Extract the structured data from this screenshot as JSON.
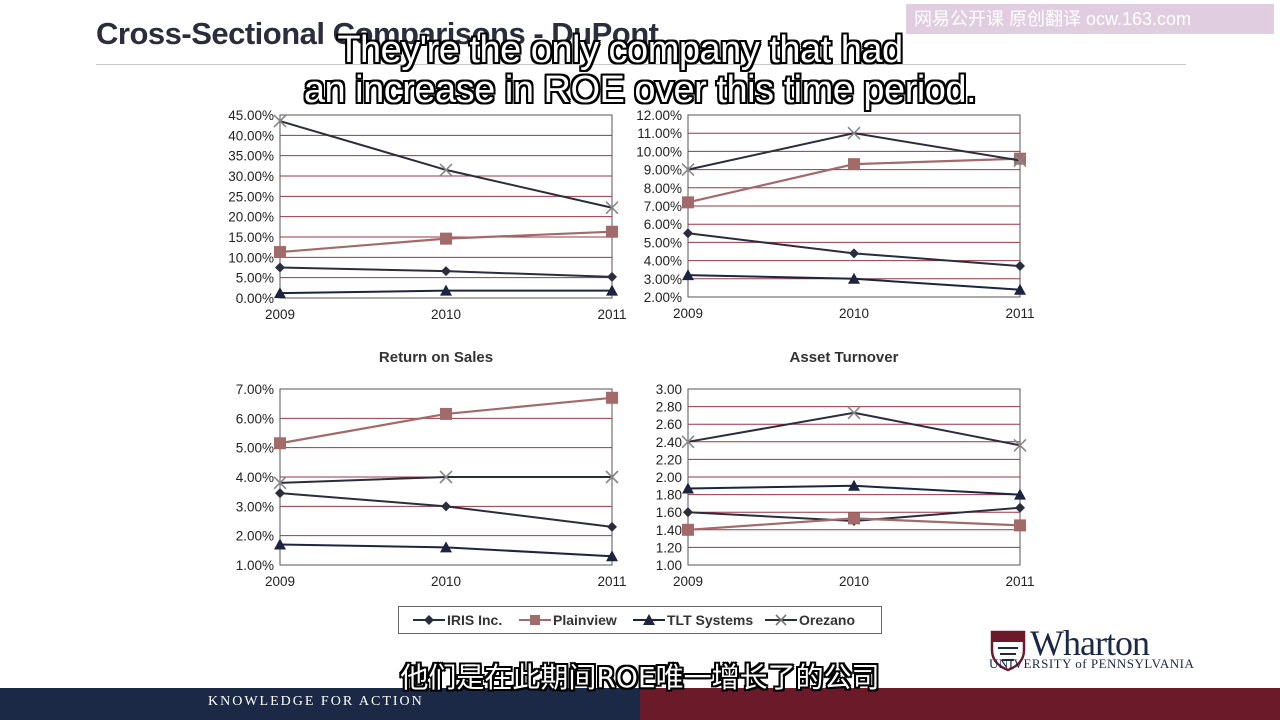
{
  "slide": {
    "title": "Cross-Sectional Comparisons - DuPont",
    "watermark": "网易公开课 原创翻译 ocw.163.com",
    "subtitle_en_line1": "They're the only company that had",
    "subtitle_en_line2": "an increase in ROE over this time period.",
    "subtitle_zh": "他们是在此期间ROE唯一增长了的公司",
    "footer": "KNOWLEDGE FOR ACTION",
    "logo": "Wharton",
    "logo_sub": "UNIVERSITY of PENNSYLVANIA"
  },
  "legend": [
    {
      "name": "IRIS Inc.",
      "color": "#2b2d3c",
      "marker": "diamond"
    },
    {
      "name": "Plainview",
      "color": "#a36a6a",
      "marker": "square"
    },
    {
      "name": "TLT Systems",
      "color": "#1d2440",
      "marker": "triangle"
    },
    {
      "name": "Orezano",
      "color": "#2b2d3c",
      "marker": "x"
    }
  ],
  "chart_data": [
    {
      "type": "line",
      "title": "",
      "x": [
        "2009",
        "2010",
        "2011"
      ],
      "yticks": [
        "0.00%",
        "5.00%",
        "10.00%",
        "15.00%",
        "20.00%",
        "25.00%",
        "30.00%",
        "35.00%",
        "40.00%",
        "45.00%"
      ],
      "ylim": [
        0,
        45
      ],
      "series": [
        {
          "name": "IRIS Inc.",
          "values": [
            7.5,
            6.6,
            5.2
          ]
        },
        {
          "name": "Plainview",
          "values": [
            11.3,
            14.6,
            16.3
          ]
        },
        {
          "name": "TLT Systems",
          "values": [
            1.2,
            1.8,
            1.8
          ]
        },
        {
          "name": "Orezano",
          "values": [
            43.5,
            31.5,
            22.2
          ]
        }
      ]
    },
    {
      "type": "line",
      "title": "",
      "x": [
        "2009",
        "2010",
        "2011"
      ],
      "yticks": [
        "2.00%",
        "3.00%",
        "4.00%",
        "5.00%",
        "6.00%",
        "7.00%",
        "8.00%",
        "9.00%",
        "10.00%",
        "11.00%",
        "12.00%"
      ],
      "ylim": [
        2,
        12
      ],
      "series": [
        {
          "name": "IRIS Inc.",
          "values": [
            5.5,
            4.4,
            3.7
          ]
        },
        {
          "name": "Plainview",
          "values": [
            7.2,
            9.3,
            9.6
          ]
        },
        {
          "name": "TLT Systems",
          "values": [
            3.2,
            3.0,
            2.4
          ]
        },
        {
          "name": "Orezano",
          "values": [
            9.0,
            11.0,
            9.5
          ]
        }
      ]
    },
    {
      "type": "line",
      "title": "Return on Sales",
      "x": [
        "2009",
        "2010",
        "2011"
      ],
      "yticks": [
        "1.00%",
        "2.00%",
        "3.00%",
        "4.00%",
        "5.00%",
        "6.00%",
        "7.00%"
      ],
      "ylim": [
        1,
        7
      ],
      "series": [
        {
          "name": "IRIS Inc.",
          "values": [
            3.45,
            3.0,
            2.3
          ]
        },
        {
          "name": "Plainview",
          "values": [
            5.15,
            6.15,
            6.7
          ]
        },
        {
          "name": "TLT Systems",
          "values": [
            1.7,
            1.6,
            1.3
          ]
        },
        {
          "name": "Orezano",
          "values": [
            3.8,
            4.0,
            4.0
          ]
        }
      ]
    },
    {
      "type": "line",
      "title": "Asset Turnover",
      "x": [
        "2009",
        "2010",
        "2011"
      ],
      "yticks": [
        "1.00",
        "1.20",
        "1.40",
        "1.60",
        "1.80",
        "2.00",
        "2.20",
        "2.40",
        "2.60",
        "2.80",
        "3.00"
      ],
      "ylim": [
        1,
        3
      ],
      "series": [
        {
          "name": "IRIS Inc.",
          "values": [
            1.6,
            1.5,
            1.65
          ]
        },
        {
          "name": "Plainview",
          "values": [
            1.4,
            1.53,
            1.45
          ]
        },
        {
          "name": "TLT Systems",
          "values": [
            1.87,
            1.9,
            1.8
          ]
        },
        {
          "name": "Orezano",
          "values": [
            2.4,
            2.73,
            2.36
          ]
        }
      ]
    }
  ]
}
